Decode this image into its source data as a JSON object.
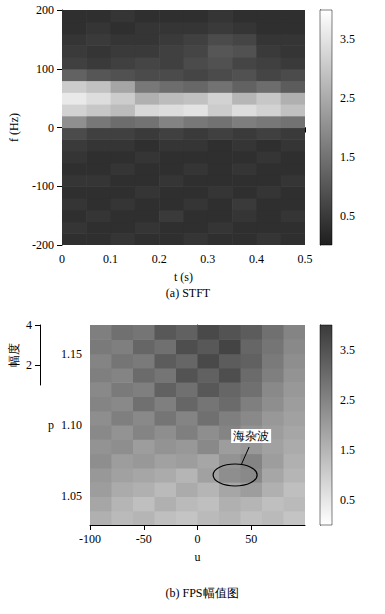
{
  "chart_data": [
    {
      "type": "heatmap",
      "title": "(a) STFT",
      "xlabel": "t (s)",
      "ylabel": "f (Hz)",
      "xlim": [
        0,
        0.5
      ],
      "xticks": [
        0,
        0.1,
        0.2,
        0.3,
        0.4,
        0.5
      ],
      "ylim": [
        -200,
        200
      ],
      "yticks": [
        -200,
        -100,
        0,
        100,
        200
      ],
      "x_edges": [
        0,
        0.05,
        0.1,
        0.15,
        0.2,
        0.25,
        0.3,
        0.35,
        0.4,
        0.45,
        0.5
      ],
      "y_edges": [
        -200,
        -180,
        -160,
        -140,
        -120,
        -100,
        -80,
        -60,
        -40,
        -20,
        0,
        20,
        40,
        60,
        80,
        100,
        120,
        140,
        160,
        180,
        200
      ],
      "cells": [
        [
          0.3,
          0.3,
          0.4,
          0.3,
          0.3,
          0.4,
          0.3,
          0.3,
          0.4,
          0.3
        ],
        [
          0.4,
          0.3,
          0.3,
          0.4,
          0.3,
          0.3,
          0.4,
          0.3,
          0.3,
          0.3
        ],
        [
          0.3,
          0.4,
          0.3,
          0.3,
          0.5,
          0.3,
          0.3,
          0.4,
          0.3,
          0.4
        ],
        [
          0.4,
          0.3,
          0.4,
          0.3,
          0.3,
          0.4,
          0.3,
          0.5,
          0.3,
          0.3
        ],
        [
          0.3,
          0.3,
          0.3,
          0.4,
          0.3,
          0.3,
          0.4,
          0.3,
          0.4,
          0.3
        ],
        [
          0.4,
          0.4,
          0.3,
          0.3,
          0.4,
          0.3,
          0.3,
          0.3,
          0.3,
          0.4
        ],
        [
          0.3,
          0.3,
          0.4,
          0.3,
          0.3,
          0.4,
          0.3,
          0.4,
          0.3,
          0.3
        ],
        [
          0.4,
          0.3,
          0.3,
          0.4,
          0.3,
          0.3,
          0.3,
          0.3,
          0.4,
          0.3
        ],
        [
          0.5,
          0.4,
          0.4,
          0.3,
          0.4,
          0.4,
          0.3,
          0.4,
          0.3,
          0.4
        ],
        [
          0.8,
          0.6,
          0.6,
          0.5,
          0.6,
          0.5,
          0.6,
          0.5,
          0.6,
          0.5
        ],
        [
          2.0,
          1.6,
          1.4,
          1.5,
          1.8,
          1.6,
          1.5,
          1.7,
          1.6,
          1.5
        ],
        [
          3.2,
          3.0,
          2.8,
          3.3,
          3.4,
          3.5,
          3.1,
          3.4,
          3.2,
          2.9
        ],
        [
          3.6,
          3.4,
          3.1,
          2.6,
          2.8,
          2.9,
          3.2,
          2.7,
          3.0,
          2.6
        ],
        [
          3.1,
          2.9,
          2.4,
          1.6,
          1.4,
          1.3,
          1.5,
          1.2,
          1.4,
          1.1
        ],
        [
          1.2,
          1.0,
          0.9,
          0.8,
          0.8,
          0.7,
          0.8,
          0.9,
          0.7,
          0.8
        ],
        [
          0.6,
          0.5,
          0.6,
          0.7,
          0.6,
          0.8,
          0.9,
          0.7,
          0.6,
          0.5
        ],
        [
          0.5,
          0.4,
          0.5,
          0.5,
          0.6,
          0.7,
          1.0,
          0.9,
          0.5,
          0.4
        ],
        [
          0.4,
          0.5,
          0.4,
          0.4,
          0.5,
          0.6,
          0.8,
          0.7,
          0.4,
          0.4
        ],
        [
          0.3,
          0.4,
          0.3,
          0.4,
          0.4,
          0.4,
          0.5,
          0.4,
          0.3,
          0.3
        ],
        [
          0.3,
          0.3,
          0.4,
          0.3,
          0.3,
          0.3,
          0.4,
          0.3,
          0.3,
          0.3
        ]
      ],
      "colorbar": {
        "range": [
          0,
          4
        ],
        "ticks": [
          0.5,
          1.5,
          2.5,
          3.5
        ],
        "colors": [
          "#1e1e1e",
          "#ffffff"
        ]
      }
    },
    {
      "type": "heatmap",
      "title": "(b) FPS幅值图",
      "xlabel": "u",
      "ylabel": "p",
      "zlabel": "幅度",
      "xlim": [
        -100,
        100
      ],
      "xticks": [
        -100,
        -50,
        0,
        50
      ],
      "ylim": [
        1.03,
        1.17
      ],
      "yticks": [
        1.05,
        {
          "value": 1.1,
          "label": "1.10"
        },
        1.15
      ],
      "zlim": [
        1,
        4
      ],
      "zticks": [
        2,
        4
      ],
      "x_edges": [
        -100,
        -80,
        -60,
        -40,
        -20,
        0,
        20,
        40,
        60,
        80,
        100
      ],
      "y_edges": [
        1.03,
        1.04,
        1.05,
        1.06,
        1.07,
        1.08,
        1.09,
        1.1,
        1.11,
        1.12,
        1.13,
        1.14,
        1.15,
        1.16,
        1.17
      ],
      "cells": [
        [
          1.6,
          1.4,
          1.5,
          1.3,
          1.2,
          1.4,
          1.5,
          1.3,
          1.4,
          1.2
        ],
        [
          1.8,
          1.5,
          1.3,
          1.6,
          1.4,
          1.3,
          1.6,
          1.5,
          1.3,
          1.4
        ],
        [
          2.0,
          1.7,
          1.6,
          1.4,
          1.7,
          1.5,
          1.8,
          2.0,
          1.6,
          1.3
        ],
        [
          2.1,
          1.9,
          1.8,
          1.7,
          1.5,
          1.9,
          2.3,
          2.4,
          1.8,
          1.5
        ],
        [
          2.3,
          2.0,
          2.1,
          1.9,
          2.0,
          1.8,
          2.2,
          2.5,
          2.0,
          1.6
        ],
        [
          2.2,
          2.3,
          2.0,
          2.2,
          2.1,
          2.4,
          2.0,
          2.1,
          1.9,
          1.7
        ],
        [
          2.4,
          2.2,
          2.5,
          2.3,
          2.6,
          2.3,
          2.5,
          2.2,
          2.0,
          1.8
        ],
        [
          2.3,
          2.6,
          2.4,
          2.8,
          2.5,
          2.9,
          2.6,
          2.4,
          2.1,
          1.9
        ],
        [
          2.5,
          2.4,
          2.9,
          2.6,
          3.1,
          2.8,
          3.0,
          2.6,
          2.3,
          2.0
        ],
        [
          2.4,
          2.7,
          2.6,
          3.2,
          2.9,
          3.4,
          3.1,
          2.9,
          2.4,
          2.1
        ],
        [
          2.6,
          2.5,
          3.0,
          2.8,
          3.5,
          3.2,
          3.6,
          3.0,
          2.6,
          2.2
        ],
        [
          2.5,
          2.8,
          2.7,
          3.3,
          3.1,
          3.7,
          3.3,
          3.2,
          2.7,
          2.3
        ],
        [
          2.7,
          2.6,
          3.1,
          2.9,
          3.6,
          3.4,
          3.8,
          3.1,
          2.8,
          2.4
        ],
        [
          2.6,
          2.9,
          2.8,
          3.4,
          3.2,
          3.7,
          3.5,
          3.3,
          2.9,
          2.5
        ]
      ],
      "annotations": [
        {
          "text": "海杂波",
          "x": 35,
          "y": 1.065
        }
      ],
      "colorbar": {
        "range": [
          0,
          4
        ],
        "ticks": [
          0.5,
          1.5,
          2.5,
          3.5
        ],
        "colors": [
          "#ffffff",
          "#3a3a3a"
        ]
      }
    }
  ]
}
